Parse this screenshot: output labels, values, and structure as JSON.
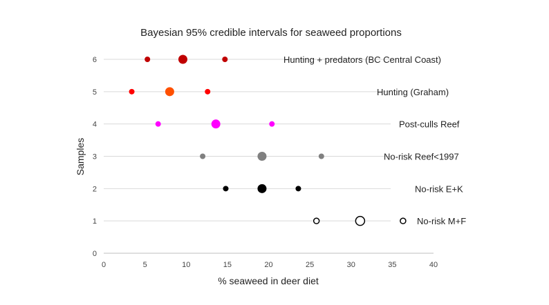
{
  "chart_data": {
    "type": "scatter",
    "title": "Bayesian 95% credible intervals for seaweed proportions",
    "xlabel": "% seaweed in deer diet",
    "ylabel": "Samples",
    "xlim": [
      0,
      40
    ],
    "ylim": [
      0,
      6
    ],
    "x_ticks": [
      "0",
      "5",
      "10",
      "15",
      "20",
      "25",
      "30",
      "35",
      "40"
    ],
    "y_ticks": [
      "0",
      "1",
      "2",
      "3",
      "4",
      "5",
      "6"
    ],
    "grid": "horizontal lines at each sample row",
    "series": [
      {
        "name": "Hunting + predators (BC Central Coast)",
        "y": 6,
        "lower": 5.3,
        "median": 9.6,
        "upper": 14.7,
        "color": "#c00000",
        "median_color": "#c00000",
        "hollow": false
      },
      {
        "name": "Hunting (Graham)",
        "y": 5,
        "lower": 3.4,
        "median": 8.0,
        "upper": 12.6,
        "color": "#ff0000",
        "median_color": "#ff5000",
        "hollow": false
      },
      {
        "name": "Post-culls Reef",
        "y": 4,
        "lower": 6.6,
        "median": 13.6,
        "upper": 20.4,
        "color": "#ff00ff",
        "median_color": "#ff00ff",
        "hollow": false
      },
      {
        "name": "No-risk Reef<1997",
        "y": 3,
        "lower": 12.0,
        "median": 19.2,
        "upper": 26.4,
        "color": "#808080",
        "median_color": "#808080",
        "hollow": false
      },
      {
        "name": "No-risk E+K",
        "y": 2,
        "lower": 14.8,
        "median": 19.2,
        "upper": 23.6,
        "color": "#000000",
        "median_color": "#000000",
        "hollow": false
      },
      {
        "name": "No-risk M+F",
        "y": 1,
        "lower": 25.8,
        "median": 31.1,
        "upper": 36.3,
        "color": "#000000",
        "median_color": "#000000",
        "hollow": true
      }
    ]
  }
}
